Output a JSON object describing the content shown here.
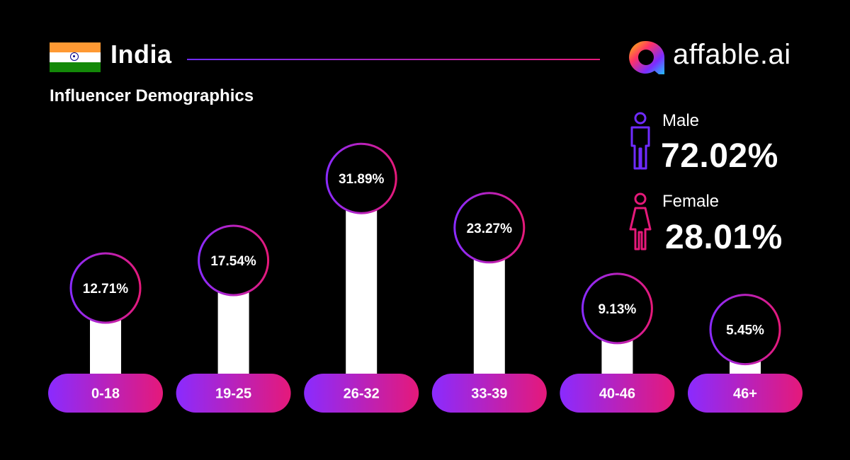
{
  "header": {
    "country": "India",
    "subtitle": "Influencer Demographics",
    "brand": "affable.ai",
    "flag_colors": [
      "#FF9933",
      "#FFFFFF",
      "#138808"
    ],
    "flag_icon": "india-flag-icon",
    "logo_icon": "affable-logo-icon"
  },
  "gender": {
    "male": {
      "label": "Male",
      "value": "72.02%",
      "icon": "male-person-icon",
      "color": "#6f2bff"
    },
    "female": {
      "label": "Female",
      "value": "28.01%",
      "icon": "female-person-icon",
      "color": "#e5197a"
    }
  },
  "colors": {
    "background": "#000000",
    "gradient_start": "#8a2bff",
    "gradient_end": "#e5197a",
    "bar": "#ffffff"
  },
  "chart_data": {
    "type": "bar",
    "categories": [
      "0-18",
      "19-25",
      "26-32",
      "33-39",
      "40-46",
      "46+"
    ],
    "values": [
      12.71,
      17.54,
      31.89,
      23.27,
      9.13,
      5.45
    ],
    "value_labels": [
      "12.71%",
      "17.54%",
      "31.89%",
      "23.27%",
      "9.13%",
      "5.45%"
    ],
    "title": "Influencer Demographics",
    "unit": "%",
    "grid": false,
    "legend": "none"
  }
}
